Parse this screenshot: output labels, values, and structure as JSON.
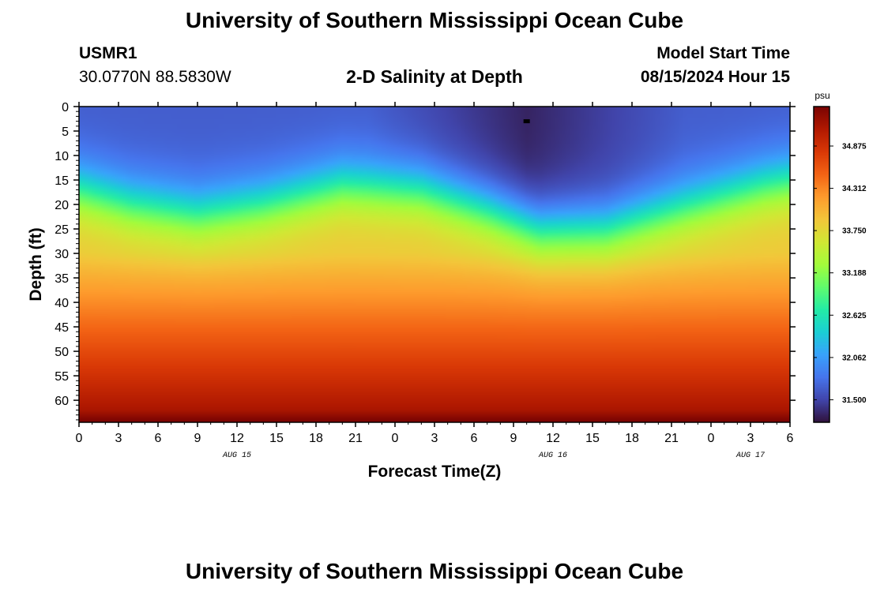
{
  "page": {
    "title_top": "University of Southern Mississippi Ocean Cube",
    "title_bottom": "University of Southern Mississippi Ocean Cube",
    "station_id": "USMR1",
    "coordinates": "30.0770N  88.5830W",
    "chart_title": "2-D Salinity at Depth",
    "model_start_label": "Model Start Time",
    "model_start_value": "08/15/2024 Hour 15"
  },
  "chart_data": {
    "type": "heatmap",
    "title": "2-D Salinity at Depth",
    "xlabel": "Forecast Time(Z)",
    "ylabel": "Depth (ft)",
    "x_range_hours": [
      0,
      54
    ],
    "x_tick_hours": [
      0,
      3,
      6,
      9,
      12,
      15,
      18,
      21,
      24,
      27,
      30,
      33,
      36,
      39,
      42,
      45,
      48,
      51,
      54
    ],
    "x_tick_labels": [
      "0",
      "3",
      "6",
      "9",
      "12",
      "15",
      "18",
      "21",
      "0",
      "3",
      "6",
      "9",
      "12",
      "15",
      "18",
      "21",
      "0",
      "3",
      "6"
    ],
    "date_labels": [
      {
        "text": "AUG 15",
        "hour": 12
      },
      {
        "text": "AUG 16",
        "hour": 36
      },
      {
        "text": "AUG 17",
        "hour": 51
      }
    ],
    "y_range": [
      0,
      64.5
    ],
    "y_ticks": [
      0,
      5,
      10,
      15,
      20,
      25,
      30,
      35,
      40,
      45,
      50,
      55,
      60
    ],
    "y_tick_labels": [
      "0",
      "5",
      "10",
      "15",
      "20",
      "25",
      "30",
      "35",
      "40",
      "45",
      "50",
      "55",
      "60"
    ],
    "colorbar": {
      "unit": "psu",
      "min": 31.2,
      "max": 35.4,
      "ticks": [
        34.875,
        34.312,
        33.75,
        33.188,
        32.625,
        32.062,
        31.5
      ],
      "tick_labels": [
        "34.875",
        "34.312",
        "33.750",
        "33.188",
        "32.625",
        "32.062",
        "31.500"
      ],
      "colors": [
        "#30123b",
        "#4145ab",
        "#4675ed",
        "#39a2fc",
        "#1bcfd4",
        "#24eca6",
        "#61fc6c",
        "#a4fc3b",
        "#d1e834",
        "#f3c63a",
        "#fe9b2d",
        "#f36315",
        "#d93806",
        "#b11901",
        "#7a0402"
      ]
    },
    "thermocline_depth_ft": [
      {
        "hour": 0,
        "depth": 17
      },
      {
        "hour": 4,
        "depth": 20
      },
      {
        "hour": 9,
        "depth": 22
      },
      {
        "hour": 14,
        "depth": 20
      },
      {
        "hour": 20,
        "depth": 16
      },
      {
        "hour": 26,
        "depth": 17
      },
      {
        "hour": 31,
        "depth": 21
      },
      {
        "hour": 35,
        "depth": 25
      },
      {
        "hour": 40,
        "depth": 25
      },
      {
        "hour": 44,
        "depth": 22
      },
      {
        "hour": 48,
        "depth": 19
      },
      {
        "hour": 52,
        "depth": 16
      },
      {
        "hour": 54,
        "depth": 15
      }
    ],
    "surface_min_psu": 31.3,
    "bottom_max_psu": 35.4,
    "marker": {
      "hour": 34,
      "depth": 3
    }
  }
}
